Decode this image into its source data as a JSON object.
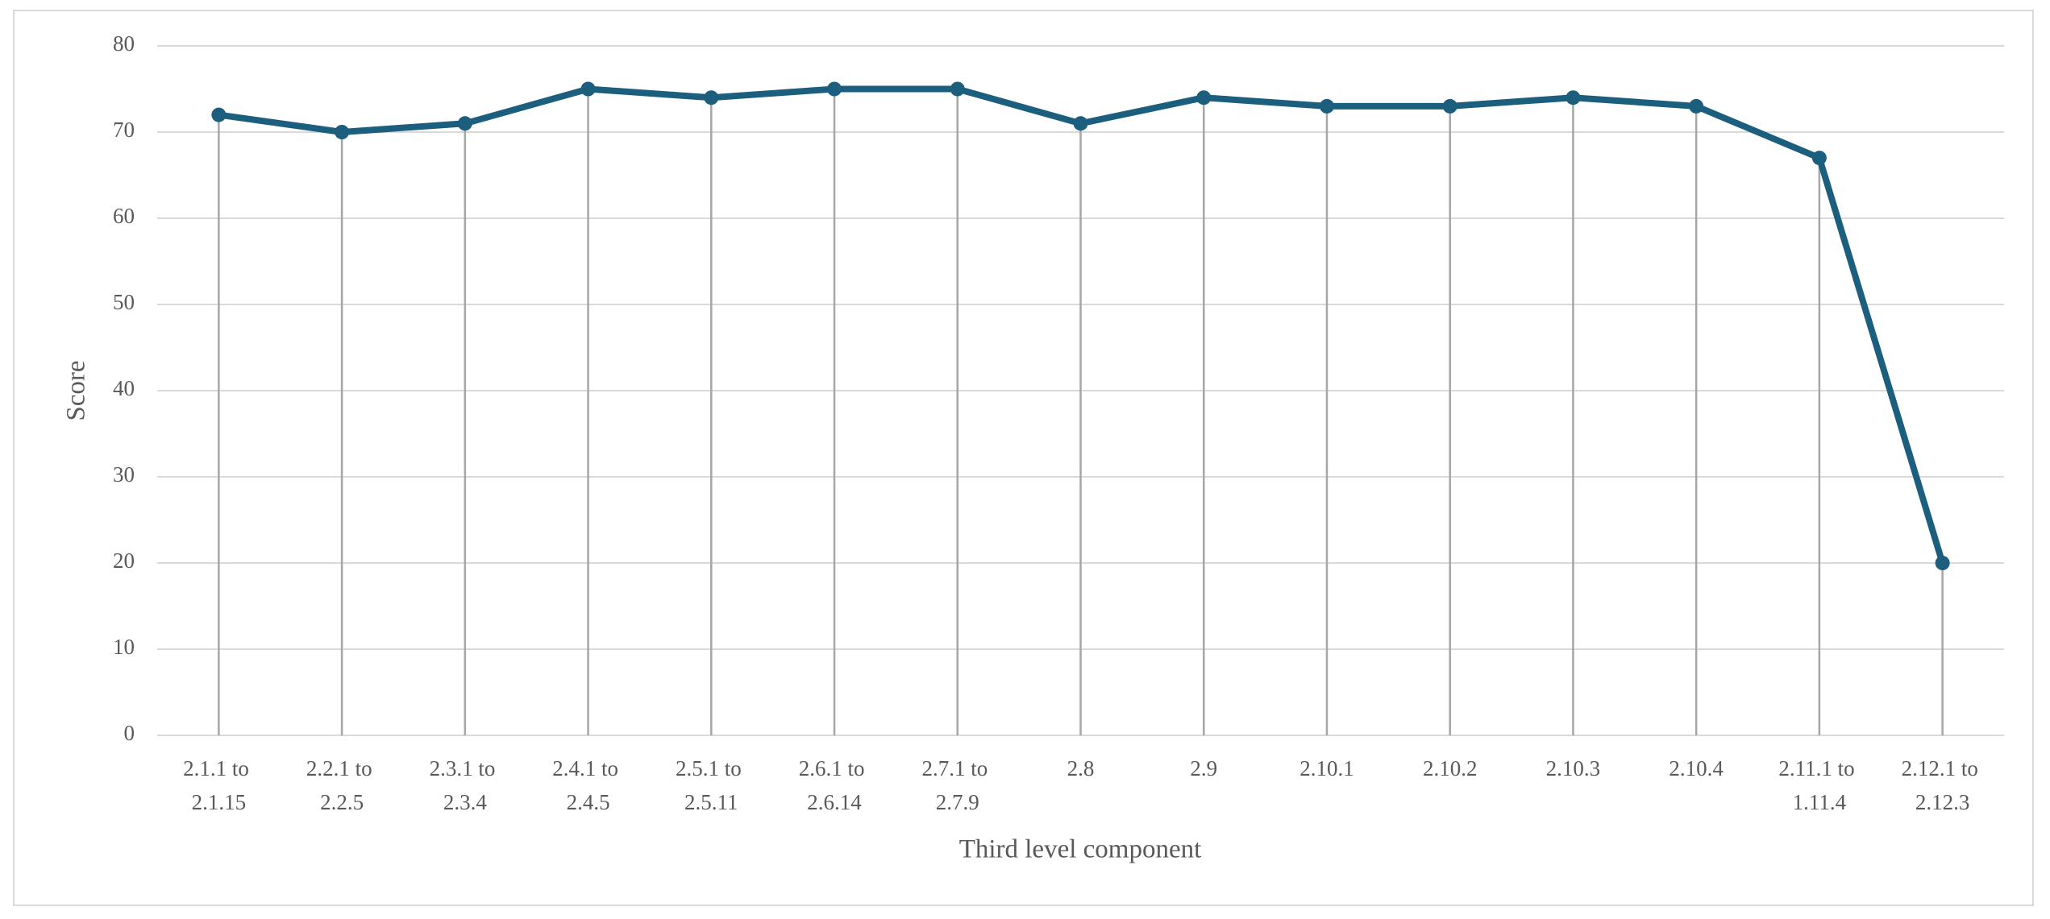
{
  "chart_data": {
    "type": "line",
    "x_label": "Third level component",
    "y_label": "Score",
    "categories": [
      "2.1.1 to 2.1.15",
      "2.2.1 to 2.2.5",
      "2.3.1 to 2.3.4",
      "2.4.1 to 2.4.5",
      "2.5.1 to 2.5.11",
      "2.6.1 to 2.6.14",
      "2.7.1 to 2.7.9",
      "2.8",
      "2.9",
      "2.10.1",
      "2.10.2",
      "2.10.3",
      "2.10.4",
      "2.11.1 to 1.11.4",
      "2.12.1 to 2.12.3"
    ],
    "values": [
      72,
      70,
      71,
      75,
      74,
      75,
      75,
      71,
      74,
      73,
      73,
      74,
      73,
      67,
      20
    ],
    "color": "#1b5e7e",
    "drop_lines": true,
    "ylim": [
      0,
      80
    ],
    "yticks": [
      0,
      10,
      20,
      30,
      40,
      50,
      60,
      70,
      80
    ],
    "grid": true
  }
}
